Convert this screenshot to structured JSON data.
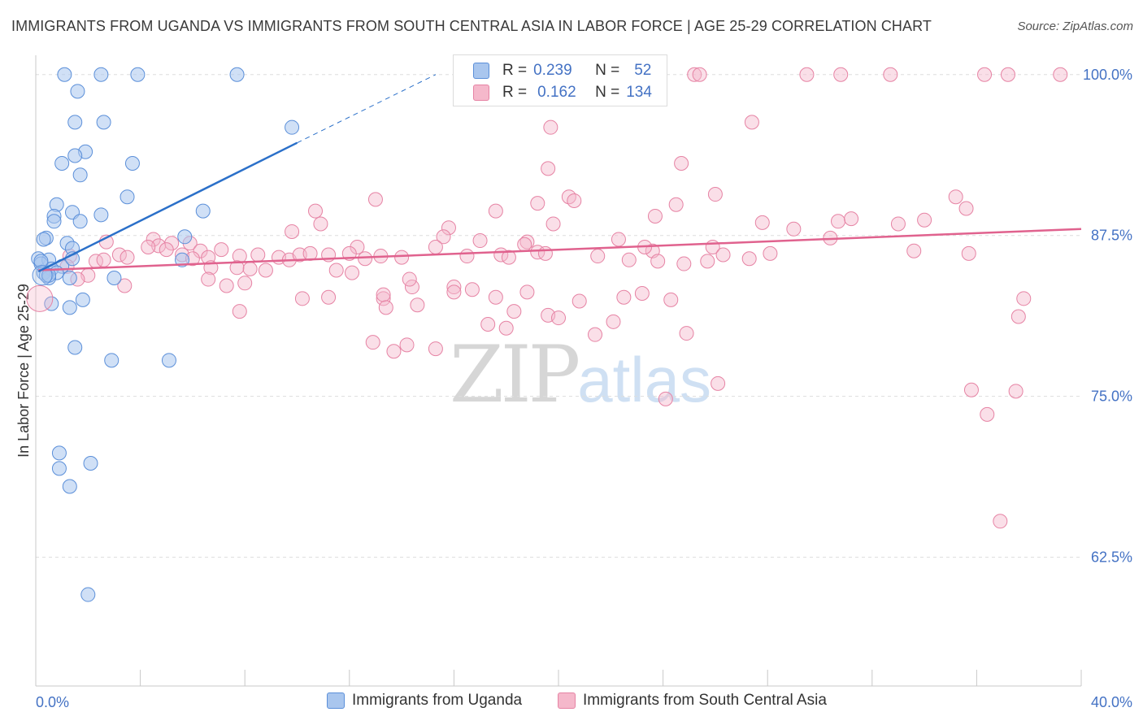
{
  "title": "IMMIGRANTS FROM UGANDA VS IMMIGRANTS FROM SOUTH CENTRAL ASIA IN LABOR FORCE | AGE 25-29 CORRELATION CHART",
  "source": "Source: ZipAtlas.com",
  "watermark": {
    "zip": "ZIP",
    "atlas": "atlas"
  },
  "colors": {
    "uganda_fill": "#a9c6ee",
    "uganda_stroke": "#5b8fd9",
    "uganda_line": "#2b70c9",
    "sca_fill": "#f5b8cb",
    "sca_stroke": "#e683a4",
    "sca_line": "#e0628e",
    "tick_label": "#4472c4",
    "grid": "#dddddd"
  },
  "stats": [
    {
      "r_label": "R =",
      "r_value": "0.239",
      "n_label": "N =",
      "n_value": "52"
    },
    {
      "r_label": "R =",
      "r_value": "0.162",
      "n_label": "N =",
      "n_value": "134"
    }
  ],
  "legend": [
    "Immigrants from Uganda",
    "Immigrants from South Central Asia"
  ],
  "chart_data": {
    "type": "scatter",
    "title": "IMMIGRANTS FROM UGANDA VS IMMIGRANTS FROM SOUTH CENTRAL ASIA IN LABOR FORCE | AGE 25-29 CORRELATION CHART",
    "xlabel": "",
    "ylabel": "In Labor Force | Age 25-29",
    "xlim": [
      0,
      40
    ],
    "ylim": [
      52.5,
      101.5
    ],
    "x_tick_labels": [
      {
        "value": 0,
        "label": "0.0%"
      },
      {
        "value": 40,
        "label": "40.0%"
      }
    ],
    "y_tick_labels": [
      {
        "value": 100,
        "label": "100.0%"
      },
      {
        "value": 87.5,
        "label": "87.5%"
      },
      {
        "value": 75,
        "label": "75.0%"
      },
      {
        "value": 62.5,
        "label": "62.5%"
      }
    ],
    "grid": true,
    "legend_position": "bottom",
    "series": [
      {
        "name": "Immigrants from Uganda",
        "trend": {
          "x": [
            0.1,
            10.0
          ],
          "y": [
            84.7,
            94.7
          ],
          "dashed_to": [
            15.3,
            100.0
          ]
        },
        "points": [
          [
            1.1,
            100
          ],
          [
            2.5,
            100
          ],
          [
            3.9,
            100
          ],
          [
            7.7,
            100
          ],
          [
            1.6,
            98.7
          ],
          [
            1.5,
            96.3
          ],
          [
            2.6,
            96.3
          ],
          [
            9.8,
            95.9
          ],
          [
            1.9,
            94.0
          ],
          [
            1.5,
            93.7
          ],
          [
            1.0,
            93.1
          ],
          [
            3.7,
            93.1
          ],
          [
            1.7,
            92.2
          ],
          [
            3.5,
            90.5
          ],
          [
            0.8,
            89.9
          ],
          [
            0.7,
            89.0
          ],
          [
            1.4,
            89.3
          ],
          [
            2.5,
            89.1
          ],
          [
            6.4,
            89.4
          ],
          [
            0.7,
            88.6
          ],
          [
            1.7,
            88.6
          ],
          [
            0.4,
            87.3
          ],
          [
            0.3,
            87.2
          ],
          [
            1.2,
            86.9
          ],
          [
            5.7,
            87.4
          ],
          [
            1.4,
            86.5
          ],
          [
            0.1,
            85.7
          ],
          [
            0.5,
            85.6
          ],
          [
            0.2,
            85.3
          ],
          [
            1.0,
            85.1
          ],
          [
            0.6,
            84.9
          ],
          [
            0.3,
            84.6
          ],
          [
            1.3,
            84.2
          ],
          [
            0.8,
            84.6
          ],
          [
            0.5,
            84.2
          ],
          [
            1.4,
            85.7
          ],
          [
            0.4,
            84.4
          ],
          [
            0.5,
            84.4
          ],
          [
            3.0,
            84.2
          ],
          [
            5.6,
            85.6
          ],
          [
            1.8,
            82.5
          ],
          [
            0.6,
            82.2
          ],
          [
            1.3,
            81.9
          ],
          [
            1.5,
            78.8
          ],
          [
            2.9,
            77.8
          ],
          [
            5.1,
            77.8
          ],
          [
            0.9,
            70.6
          ],
          [
            0.9,
            69.4
          ],
          [
            2.1,
            69.8
          ],
          [
            1.3,
            68.0
          ],
          [
            2.0,
            59.6
          ],
          [
            0.2,
            85.5
          ]
        ]
      },
      {
        "name": "Immigrants from South Central Asia",
        "trend": {
          "x": [
            0.1,
            40.0
          ],
          "y": [
            84.8,
            88.0
          ]
        },
        "points": [
          [
            25.2,
            100
          ],
          [
            25.4,
            100
          ],
          [
            29.5,
            100
          ],
          [
            30.8,
            100
          ],
          [
            32.7,
            100
          ],
          [
            36.3,
            100
          ],
          [
            37.2,
            100
          ],
          [
            39.2,
            100
          ],
          [
            27.4,
            96.3
          ],
          [
            19.7,
            95.9
          ],
          [
            24.7,
            93.1
          ],
          [
            19.6,
            92.7
          ],
          [
            26.0,
            90.7
          ],
          [
            20.4,
            90.5
          ],
          [
            20.6,
            90.2
          ],
          [
            13.0,
            90.3
          ],
          [
            19.2,
            90.0
          ],
          [
            24.5,
            89.9
          ],
          [
            35.2,
            90.5
          ],
          [
            35.6,
            89.6
          ],
          [
            10.7,
            89.4
          ],
          [
            17.6,
            89.4
          ],
          [
            23.7,
            89.0
          ],
          [
            27.8,
            88.5
          ],
          [
            30.7,
            88.6
          ],
          [
            31.2,
            88.8
          ],
          [
            33.0,
            88.4
          ],
          [
            34.0,
            88.7
          ],
          [
            10.9,
            88.4
          ],
          [
            19.8,
            88.4
          ],
          [
            15.8,
            88.1
          ],
          [
            29.0,
            88.0
          ],
          [
            9.8,
            87.8
          ],
          [
            15.6,
            87.4
          ],
          [
            18.8,
            87.0
          ],
          [
            17.0,
            87.1
          ],
          [
            22.3,
            87.2
          ],
          [
            30.4,
            87.3
          ],
          [
            4.5,
            87.2
          ],
          [
            2.7,
            87.0
          ],
          [
            5.2,
            86.9
          ],
          [
            5.9,
            86.9
          ],
          [
            4.7,
            86.7
          ],
          [
            4.3,
            86.6
          ],
          [
            5.0,
            86.4
          ],
          [
            6.3,
            86.3
          ],
          [
            7.1,
            86.4
          ],
          [
            12.3,
            86.6
          ],
          [
            18.7,
            86.8
          ],
          [
            15.3,
            86.6
          ],
          [
            23.6,
            86.3
          ],
          [
            19.2,
            86.2
          ],
          [
            25.9,
            86.6
          ],
          [
            23.3,
            86.6
          ],
          [
            3.2,
            86.0
          ],
          [
            3.5,
            85.8
          ],
          [
            1.3,
            85.9
          ],
          [
            1.2,
            85.1
          ],
          [
            2.3,
            85.5
          ],
          [
            2.6,
            85.6
          ],
          [
            5.6,
            86.0
          ],
          [
            6.6,
            85.8
          ],
          [
            7.8,
            85.9
          ],
          [
            8.5,
            86.0
          ],
          [
            9.3,
            85.8
          ],
          [
            9.7,
            85.6
          ],
          [
            10.1,
            86.0
          ],
          [
            10.5,
            86.1
          ],
          [
            11.2,
            86.0
          ],
          [
            12.0,
            86.1
          ],
          [
            12.6,
            85.7
          ],
          [
            13.2,
            85.9
          ],
          [
            14.0,
            85.8
          ],
          [
            16.5,
            85.9
          ],
          [
            17.8,
            86.0
          ],
          [
            18.1,
            85.8
          ],
          [
            19.5,
            86.1
          ],
          [
            21.5,
            85.9
          ],
          [
            22.7,
            85.6
          ],
          [
            23.8,
            85.5
          ],
          [
            24.8,
            85.3
          ],
          [
            25.7,
            85.5
          ],
          [
            26.3,
            86.0
          ],
          [
            27.3,
            85.7
          ],
          [
            28.1,
            86.1
          ],
          [
            33.6,
            86.3
          ],
          [
            35.7,
            86.1
          ],
          [
            6.0,
            85.7
          ],
          [
            6.7,
            85.0
          ],
          [
            7.7,
            85.0
          ],
          [
            8.2,
            84.9
          ],
          [
            8.8,
            84.8
          ],
          [
            11.5,
            84.8
          ],
          [
            12.1,
            84.6
          ],
          [
            2.0,
            84.4
          ],
          [
            3.4,
            83.6
          ],
          [
            1.6,
            84.1
          ],
          [
            6.6,
            84.1
          ],
          [
            7.3,
            83.6
          ],
          [
            8.0,
            83.8
          ],
          [
            14.4,
            83.5
          ],
          [
            14.3,
            84.1
          ],
          [
            16.0,
            83.5
          ],
          [
            16.7,
            83.3
          ],
          [
            10.2,
            82.6
          ],
          [
            11.2,
            82.7
          ],
          [
            13.3,
            82.6
          ],
          [
            13.3,
            82.9
          ],
          [
            13.4,
            81.9
          ],
          [
            14.6,
            82.1
          ],
          [
            16.0,
            83.1
          ],
          [
            17.6,
            82.7
          ],
          [
            18.3,
            81.6
          ],
          [
            18.8,
            83.1
          ],
          [
            20.8,
            82.4
          ],
          [
            22.5,
            82.7
          ],
          [
            23.2,
            83.0
          ],
          [
            24.3,
            82.5
          ],
          [
            7.8,
            81.6
          ],
          [
            17.3,
            80.6
          ],
          [
            18.0,
            80.3
          ],
          [
            19.6,
            81.3
          ],
          [
            20.0,
            81.1
          ],
          [
            21.4,
            79.8
          ],
          [
            22.1,
            80.8
          ],
          [
            24.9,
            79.9
          ],
          [
            12.9,
            79.2
          ],
          [
            14.2,
            79.0
          ],
          [
            13.7,
            78.5
          ],
          [
            15.3,
            78.7
          ],
          [
            26.1,
            76.0
          ],
          [
            24.1,
            74.8
          ],
          [
            35.8,
            75.5
          ],
          [
            37.5,
            75.4
          ],
          [
            36.4,
            73.6
          ],
          [
            36.9,
            65.3
          ],
          [
            37.6,
            81.2
          ],
          [
            37.8,
            82.6
          ]
        ]
      }
    ]
  }
}
